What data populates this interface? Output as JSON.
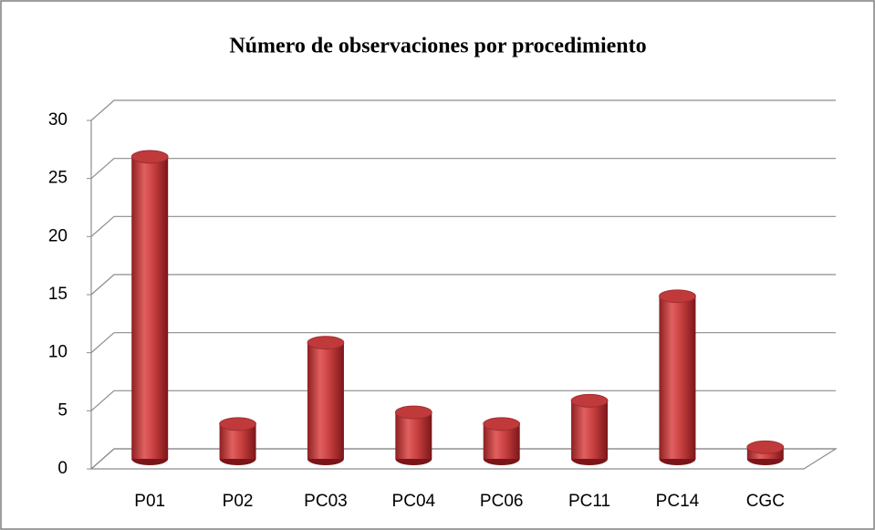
{
  "chart_data": {
    "type": "bar",
    "title": "Número de observaciones por procedimiento",
    "categories": [
      "P01",
      "P02",
      "PC03",
      "PC04",
      "PC06",
      "PC11",
      "PC14",
      "CGC"
    ],
    "values": [
      26,
      3,
      10,
      4,
      3,
      5,
      14,
      1
    ],
    "color": "#c0393b",
    "ylim": [
      0,
      30
    ],
    "yticks": [
      0,
      5,
      10,
      15,
      20,
      25,
      30
    ],
    "grid": true
  }
}
